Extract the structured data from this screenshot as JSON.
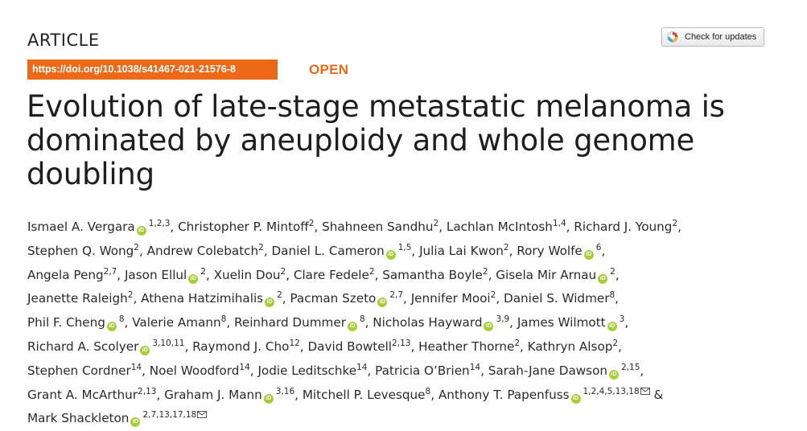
{
  "header": {
    "article_type": "ARTICLE",
    "check_updates_label": "Check for updates",
    "doi": "https://doi.org/10.1038/s41467-021-21576-8",
    "open_label": "OPEN"
  },
  "title": {
    "lines": [
      "Evolution of late-stage metastatic melanoma is",
      "dominated by aneuploidy and whole genome",
      "doubling"
    ]
  },
  "authors": {
    "lines": [
      [
        {
          "name": "Ismael A. Vergara",
          "orcid": true,
          "aff": "1,2,3",
          "sep": ","
        },
        {
          "name": "Christopher P. Mintoff",
          "aff": "2",
          "sep": ","
        },
        {
          "name": "Shahneen Sandhu",
          "aff": "2",
          "sep": ","
        },
        {
          "name": "Lachlan McIntosh",
          "aff": "1,4",
          "sep": ","
        },
        {
          "name": "Richard J. Young",
          "aff": "2",
          "sep": ","
        }
      ],
      [
        {
          "name": "Stephen Q. Wong",
          "aff": "2",
          "sep": ","
        },
        {
          "name": "Andrew Colebatch",
          "aff": "2",
          "sep": ","
        },
        {
          "name": "Daniel L. Cameron",
          "orcid": true,
          "aff": "1,5",
          "sep": ","
        },
        {
          "name": "Julia Lai Kwon",
          "aff": "2",
          "sep": ","
        },
        {
          "name": "Rory Wolfe",
          "orcid": true,
          "aff": "6",
          "sep": ","
        }
      ],
      [
        {
          "name": "Angela Peng",
          "aff": "2,7",
          "sep": ","
        },
        {
          "name": "Jason Ellul",
          "orcid": true,
          "aff": "2",
          "sep": ","
        },
        {
          "name": "Xuelin Dou",
          "aff": "2",
          "sep": ","
        },
        {
          "name": "Clare Fedele",
          "aff": "2",
          "sep": ","
        },
        {
          "name": "Samantha Boyle",
          "aff": "2",
          "sep": ","
        },
        {
          "name": "Gisela Mir Arnau",
          "orcid": true,
          "aff": "2",
          "sep": ","
        }
      ],
      [
        {
          "name": "Jeanette Raleigh",
          "aff": "2",
          "sep": ","
        },
        {
          "name": "Athena Hatzimihalis",
          "orcid": true,
          "aff": "2",
          "sep": ","
        },
        {
          "name": "Pacman Szeto",
          "orcid": true,
          "aff": "2,7",
          "sep": ","
        },
        {
          "name": "Jennifer Mooi",
          "aff": "2",
          "sep": ","
        },
        {
          "name": "Daniel S. Widmer",
          "aff": "8",
          "sep": ","
        }
      ],
      [
        {
          "name": "Phil F. Cheng",
          "orcid": true,
          "aff": "8",
          "sep": ","
        },
        {
          "name": "Valerie Amann",
          "aff": "8",
          "sep": ","
        },
        {
          "name": "Reinhard Dummer",
          "orcid": true,
          "aff": "8",
          "sep": ","
        },
        {
          "name": "Nicholas Hayward",
          "orcid": true,
          "aff": "3,9",
          "sep": ","
        },
        {
          "name": "James Wilmott",
          "orcid": true,
          "aff": "3",
          "sep": ","
        }
      ],
      [
        {
          "name": "Richard A. Scolyer",
          "orcid": true,
          "aff": "3,10,11",
          "sep": ","
        },
        {
          "name": "Raymond J. Cho",
          "aff": "12",
          "sep": ","
        },
        {
          "name": "David Bowtell",
          "aff": "2,13",
          "sep": ","
        },
        {
          "name": "Heather Thorne",
          "aff": "2",
          "sep": ","
        },
        {
          "name": "Kathryn Alsop",
          "aff": "2",
          "sep": ","
        }
      ],
      [
        {
          "name": "Stephen Cordner",
          "aff": "14",
          "sep": ","
        },
        {
          "name": "Noel Woodford",
          "aff": "14",
          "sep": ","
        },
        {
          "name": "Jodie Leditschke",
          "aff": "14",
          "sep": ","
        },
        {
          "name": "Patricia O’Brien",
          "aff": "14",
          "sep": ","
        },
        {
          "name": "Sarah-Jane Dawson",
          "orcid": true,
          "aff": "2,15",
          "sep": ","
        }
      ],
      [
        {
          "name": "Grant A. McArthur",
          "aff": "2,13",
          "sep": ","
        },
        {
          "name": "Graham J. Mann",
          "orcid": true,
          "aff": "3,16",
          "sep": ","
        },
        {
          "name": "Mitchell P. Levesque",
          "aff": "8",
          "sep": ","
        },
        {
          "name": "Anthony T. Papenfuss",
          "orcid": true,
          "aff": "1,2,4,5,13,18",
          "mail": true,
          "sep": " &"
        }
      ],
      [
        {
          "name": "Mark Shackleton",
          "orcid": true,
          "aff": "2,7,13,17,18",
          "mail": true,
          "sep": ""
        }
      ]
    ]
  },
  "icons": {
    "orcid": "orcid-icon",
    "mail": "envelope-icon",
    "check_updates": "crossmark-icon"
  },
  "colors": {
    "accent": "#ec6a17",
    "orcid": "#a6ce39",
    "text": "#222222"
  }
}
